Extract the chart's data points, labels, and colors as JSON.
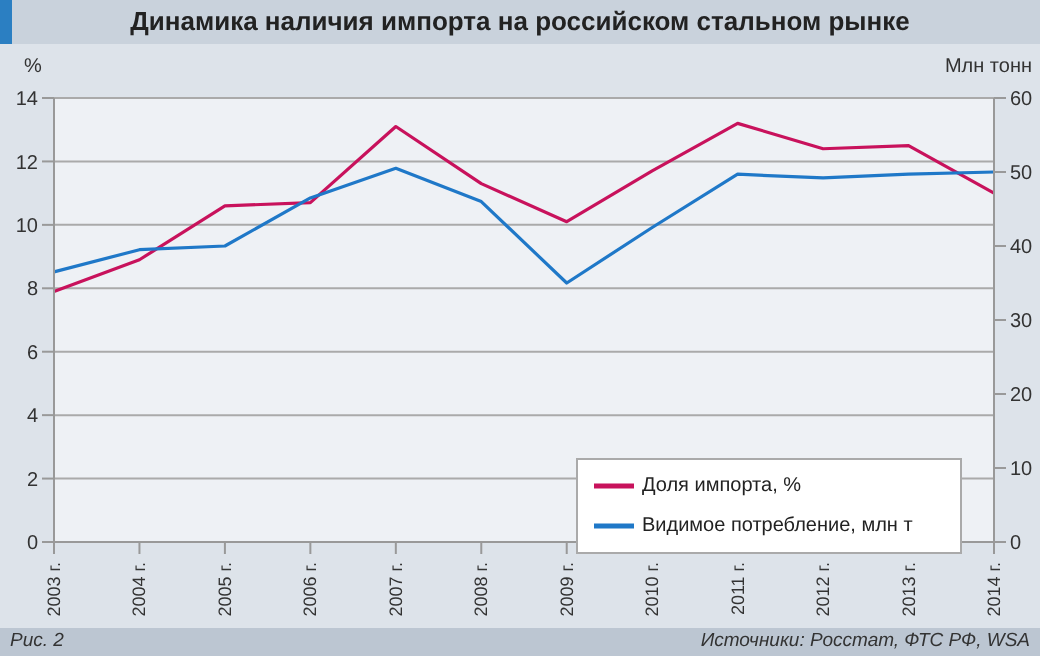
{
  "chart_data": {
    "type": "line",
    "title": "Динамика наличия импорта на российском стальном рынке",
    "ylabel": "%",
    "y2label": "Млн тонн",
    "annotations": [
      "Рис. 2",
      "Источники: Росстат, ФТС РФ, WSA"
    ],
    "categories": [
      "2003 г.",
      "2004 г.",
      "2005 г.",
      "2006 г.",
      "2007 г.",
      "2008 г.",
      "2009 г.",
      "2010 г.",
      "2011 г.",
      "2012 г.",
      "2013 г.",
      "2014 г."
    ],
    "series": [
      {
        "name": "Доля импорта, %",
        "color": "#c8125c",
        "values": [
          7.9,
          8.9,
          10.6,
          10.7,
          13.1,
          11.3,
          10.1,
          11.7,
          13.2,
          12.4,
          12.5,
          11.0
        ]
      },
      {
        "name": "Видимое потребление, млн т",
        "color": "#1f78c8",
        "axis": "y2",
        "values": [
          36.5,
          39.5,
          40,
          46.5,
          50.5,
          46,
          35,
          42.5,
          49.7,
          49.2,
          49.7,
          50
        ]
      }
    ],
    "ylim": [
      0,
      14
    ],
    "yticks": [
      0,
      2,
      4,
      6,
      8,
      10,
      12,
      14
    ],
    "y2lim": [
      0,
      60
    ],
    "y2ticks": [
      0,
      10,
      20,
      30,
      40,
      50,
      60
    ],
    "grid": "y",
    "legend": "bottom right",
    "marker": "none",
    "line_style": "solid"
  }
}
